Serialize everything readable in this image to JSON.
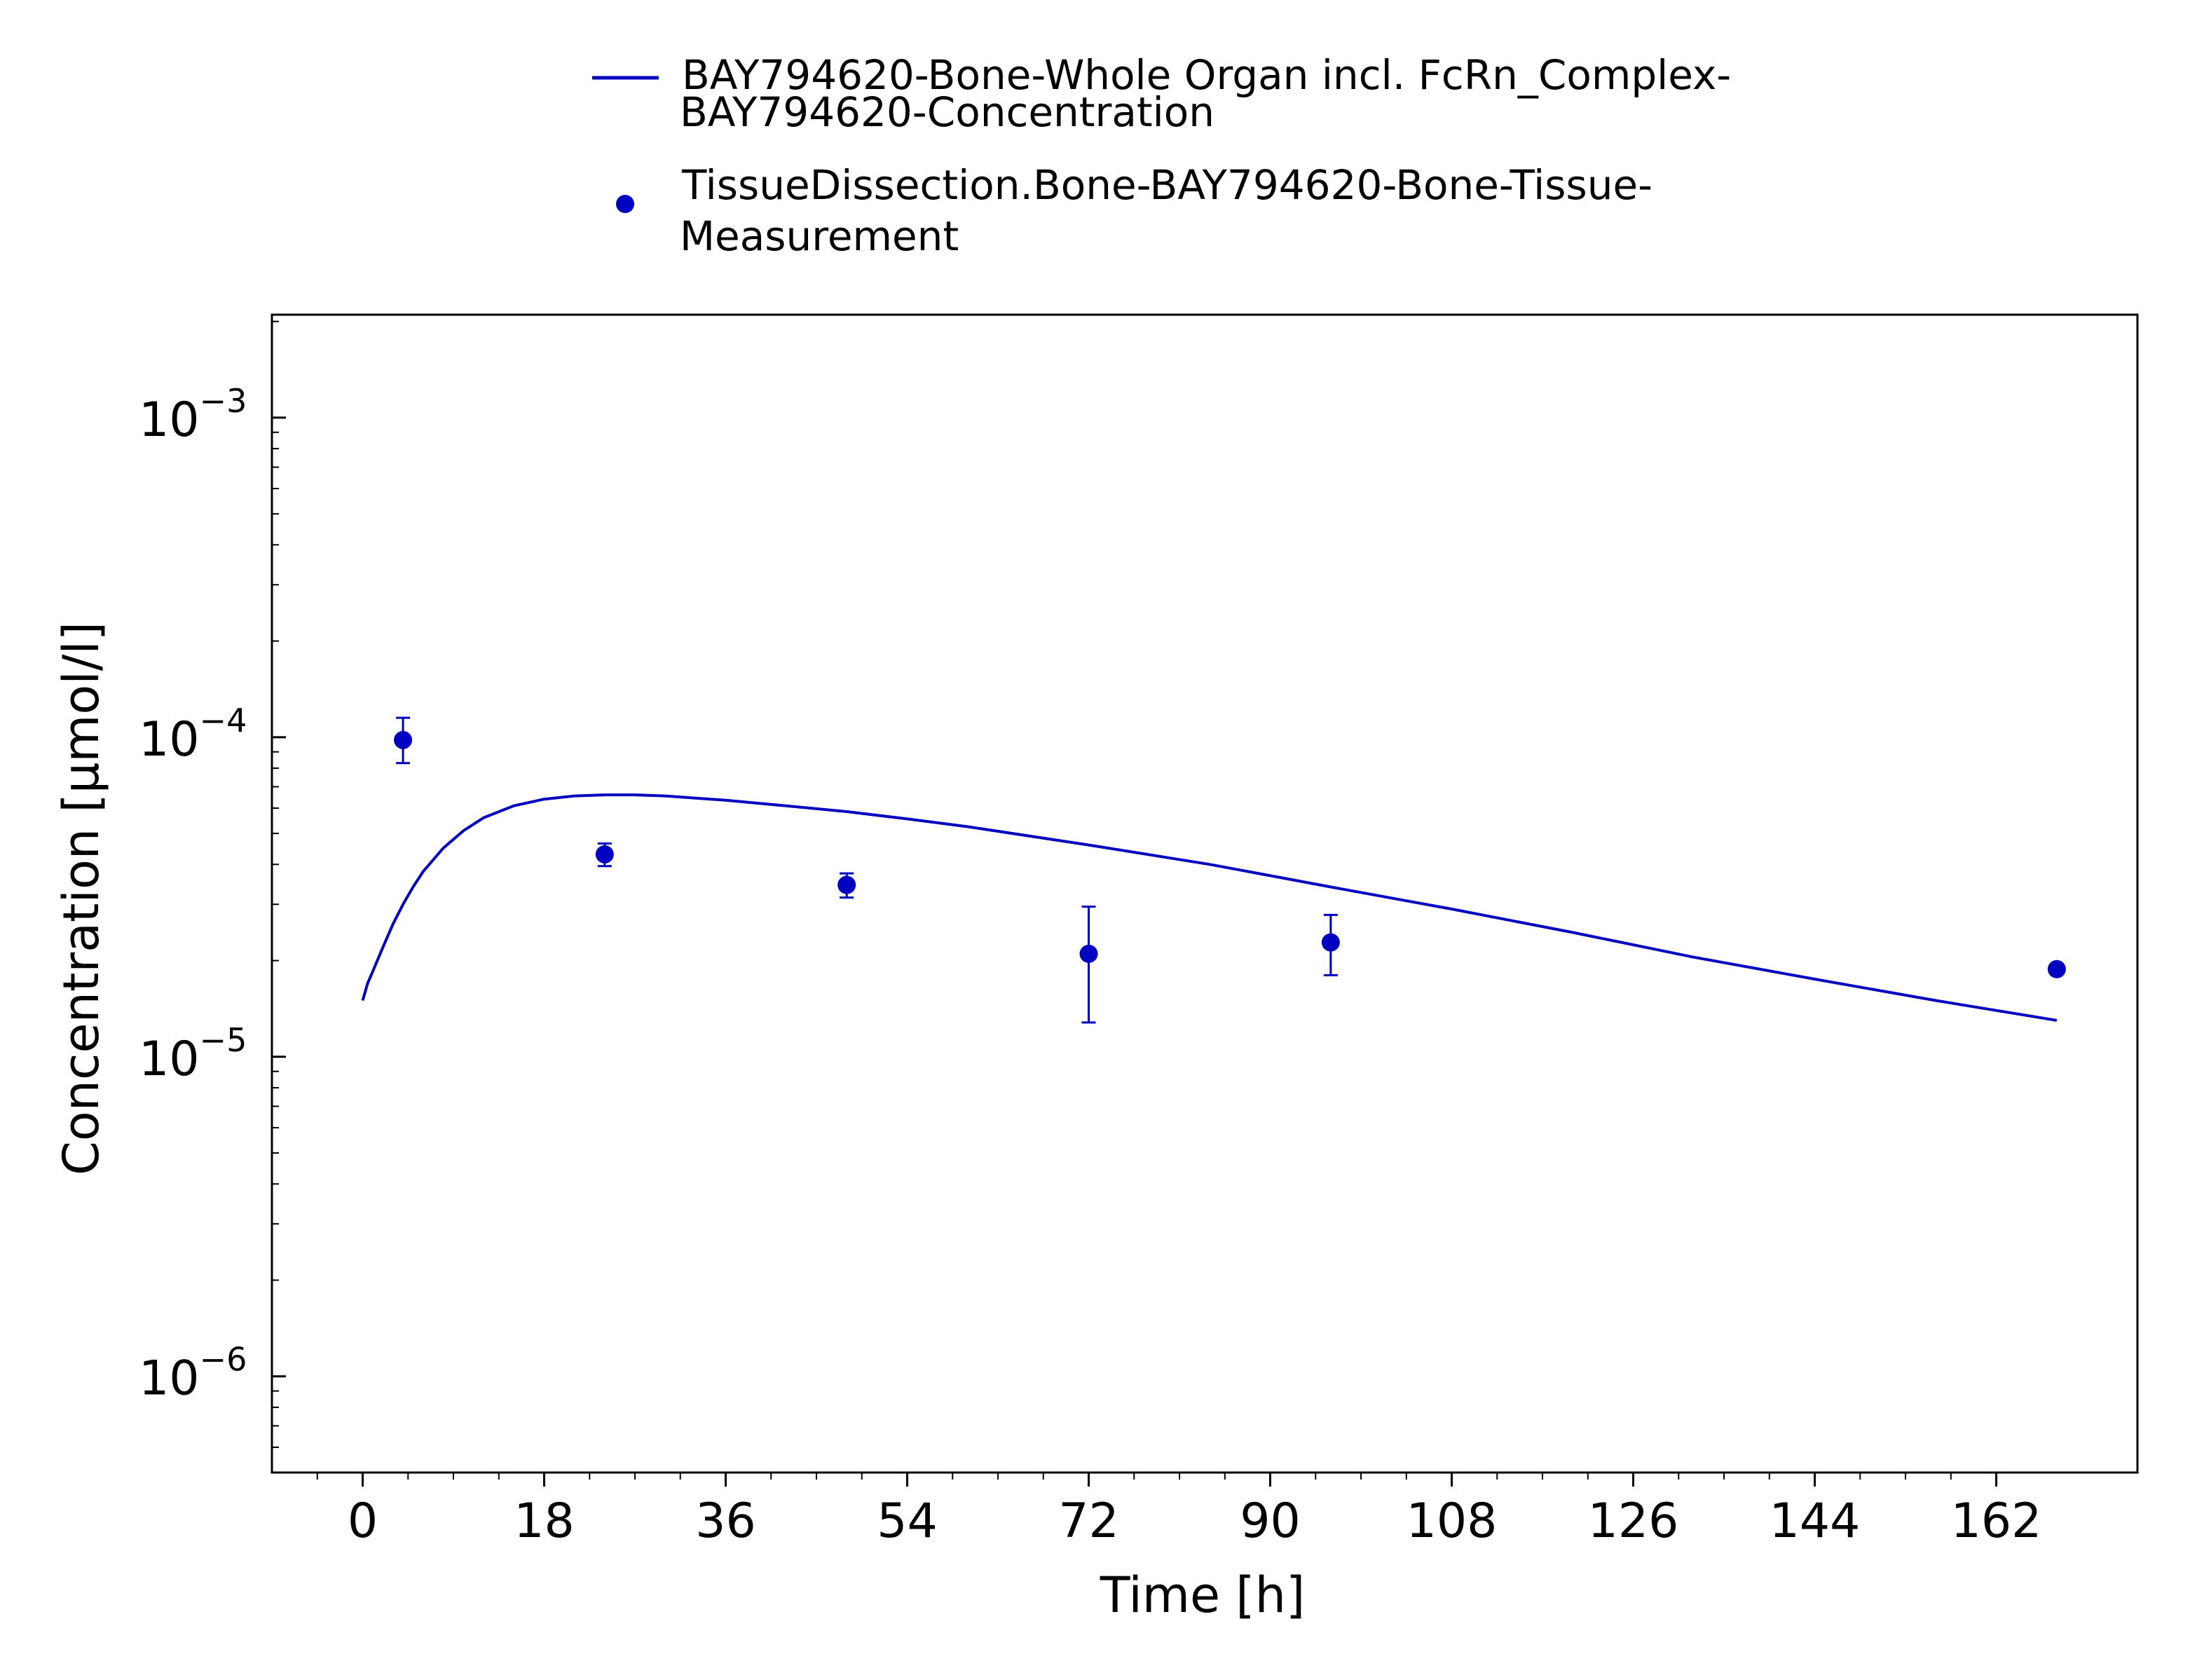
{
  "chart_data": {
    "type": "line",
    "xlabel": "Time [h]",
    "ylabel": "Concentration [µmol/l]",
    "x_ticks": [
      0,
      18,
      36,
      54,
      72,
      90,
      108,
      126,
      144,
      162
    ],
    "xlim": [
      -9,
      176
    ],
    "y_scale": "log",
    "ylim": [
      5e-07,
      0.0021
    ],
    "y_ticks": [
      {
        "value": 1e-06,
        "base": "10",
        "exponent": "−6"
      },
      {
        "value": 1e-05,
        "base": "10",
        "exponent": "−5"
      },
      {
        "value": 0.0001,
        "base": "10",
        "exponent": "−4"
      },
      {
        "value": 0.001,
        "base": "10",
        "exponent": "−3"
      }
    ],
    "legend_position": "top",
    "grid": false,
    "series": [
      {
        "name_lines": [
          "BAY794620-Bone-Whole Organ incl. FcRn_Complex-",
          "BAY794620-Concentration"
        ],
        "kind": "line",
        "color": "#0000c0",
        "x": [
          0,
          0.5,
          1,
          2,
          3,
          4,
          5,
          6,
          8,
          10,
          12,
          15,
          18,
          21,
          24,
          27,
          30,
          36,
          42,
          48,
          54,
          60,
          72,
          84,
          96,
          108,
          120,
          132,
          144,
          156,
          168
        ],
        "y": [
          1.5e-05,
          1.7e-05,
          1.85e-05,
          2.2e-05,
          2.6e-05,
          3e-05,
          3.4e-05,
          3.8e-05,
          4.5e-05,
          5.1e-05,
          5.6e-05,
          6.1e-05,
          6.4e-05,
          6.55e-05,
          6.6e-05,
          6.6e-05,
          6.55e-05,
          6.35e-05,
          6.1e-05,
          5.85e-05,
          5.55e-05,
          5.25e-05,
          4.6e-05,
          4e-05,
          3.4e-05,
          2.9e-05,
          2.45e-05,
          2.05e-05,
          1.75e-05,
          1.5e-05,
          1.3e-05
        ]
      },
      {
        "name_lines": [
          "TissueDissection.Bone-BAY794620-Bone-Tissue-",
          "Measurement"
        ],
        "kind": "scatter",
        "color": "#0000c0",
        "points": [
          {
            "x": 4,
            "y": 9.8e-05,
            "ylow": 8.3e-05,
            "yhigh": 0.000115
          },
          {
            "x": 24,
            "y": 4.3e-05,
            "ylow": 3.95e-05,
            "yhigh": 4.65e-05
          },
          {
            "x": 48,
            "y": 3.45e-05,
            "ylow": 3.15e-05,
            "yhigh": 3.75e-05
          },
          {
            "x": 72,
            "y": 2.1e-05,
            "ylow": 1.28e-05,
            "yhigh": 2.95e-05
          },
          {
            "x": 96,
            "y": 2.28e-05,
            "ylow": 1.8e-05,
            "yhigh": 2.78e-05
          },
          {
            "x": 168,
            "y": 1.88e-05
          }
        ]
      }
    ]
  }
}
